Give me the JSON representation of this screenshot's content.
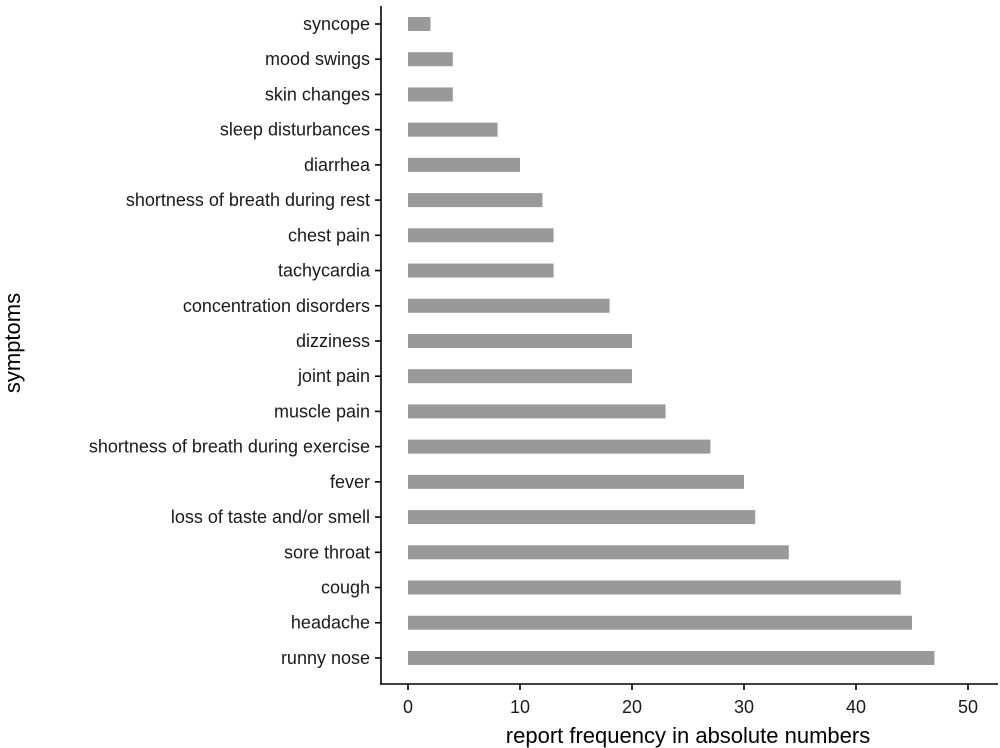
{
  "chart_data": {
    "type": "bar",
    "orientation": "horizontal",
    "categories": [
      "syncope",
      "mood swings",
      "skin changes",
      "sleep disturbances",
      "diarrhea",
      "shortness of breath during rest",
      "chest pain",
      "tachycardia",
      "concentration disorders",
      "dizziness",
      "joint pain",
      "muscle pain",
      "shortness of breath during exercise",
      "fever",
      "loss of taste and/or smell",
      "sore throat",
      "cough",
      "headache",
      "runny nose"
    ],
    "values": [
      2,
      4,
      4,
      8,
      10,
      12,
      13,
      13,
      18,
      20,
      20,
      23,
      27,
      30,
      31,
      34,
      44,
      45,
      47
    ],
    "xlabel": "report frequency in absolute numbers",
    "ylabel": "symptoms",
    "xlim": [
      0,
      50
    ],
    "xticks": [
      "0",
      "10",
      "20",
      "30",
      "40",
      "50"
    ],
    "bar_color": "#999999",
    "grid": false,
    "legend": "none"
  }
}
